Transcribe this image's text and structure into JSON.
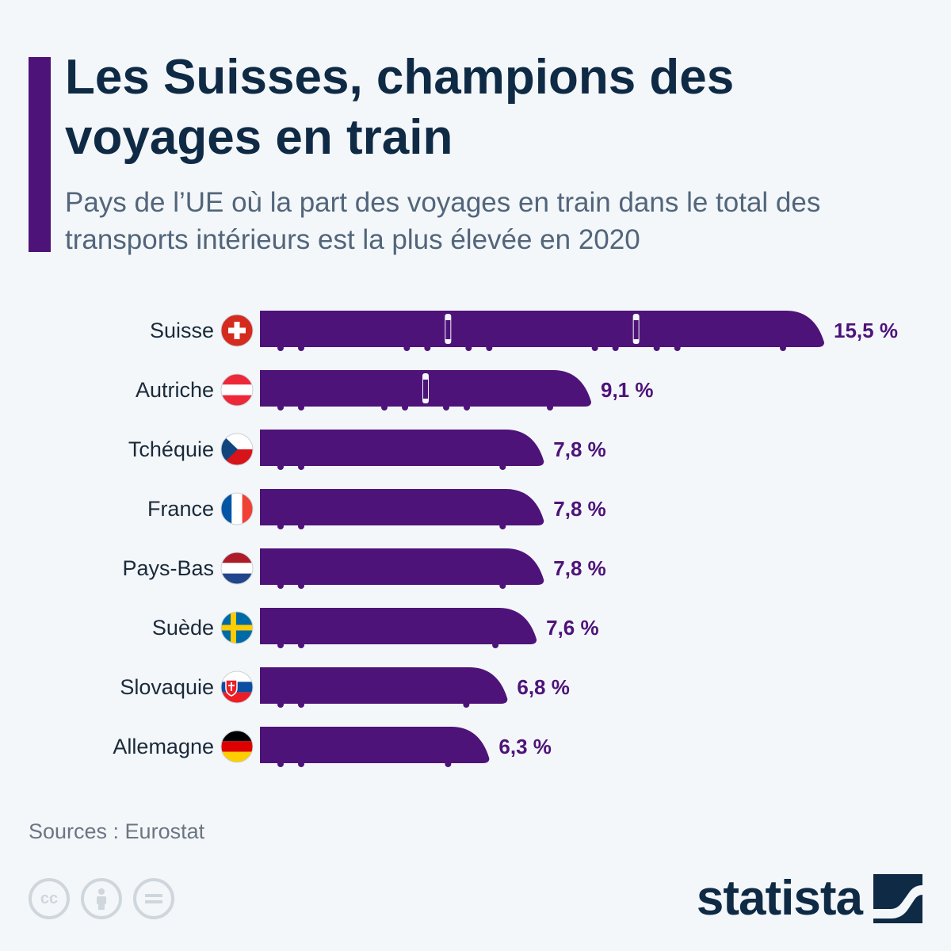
{
  "header": {
    "title": "Les Suisses, champions des voyages en train",
    "subtitle": "Pays de l’UE où la part des voyages en train dans le total des transports intérieurs est la plus élevée en 2020"
  },
  "colors": {
    "accent": "#4e1379",
    "bar": "#4e1379",
    "title": "#0f2a44",
    "subtitle": "#52657a",
    "label": "#1b2a3a",
    "value": "#4e1379"
  },
  "chart_data": {
    "type": "bar",
    "orientation": "horizontal",
    "unit": "%",
    "categories": [
      "Suisse",
      "Autriche",
      "Tchéquie",
      "France",
      "Pays-Bas",
      "Suède",
      "Slovaquie",
      "Allemagne"
    ],
    "values": [
      15.5,
      9.1,
      7.8,
      7.8,
      7.8,
      7.6,
      6.8,
      6.3
    ],
    "value_labels": [
      "15,5 %",
      "9,1 %",
      "7,8 %",
      "7,8 %",
      "7,8 %",
      "7,6 %",
      "6,8 %",
      "6,3 %"
    ],
    "flags": [
      "flag-switzerland-icon",
      "flag-austria-icon",
      "flag-czechia-icon",
      "flag-france-icon",
      "flag-netherlands-icon",
      "flag-sweden-icon",
      "flag-slovakia-icon",
      "flag-germany-icon"
    ],
    "xlim": [
      0,
      15.5
    ],
    "grid": false,
    "legend": "none"
  },
  "footer": {
    "source": "Sources : Eurostat",
    "license_icons": [
      "cc-icon",
      "attribution-icon",
      "no-derivatives-icon"
    ],
    "brand": "statista"
  }
}
